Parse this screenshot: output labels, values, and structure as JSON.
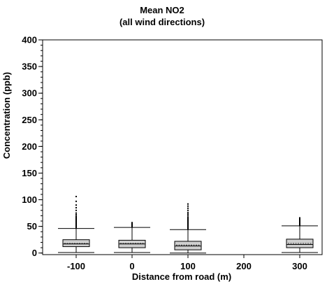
{
  "chart_data": {
    "type": "box",
    "title": "Mean NO2",
    "subtitle": "(all wind directions)",
    "xlabel": "Distance from road (m)",
    "ylabel": "Concentration (ppb)",
    "xlim": [
      -160,
      340
    ],
    "ylim": [
      -3,
      400
    ],
    "x_ticks": [
      -100,
      0,
      100,
      200,
      300
    ],
    "y_ticks": [
      0,
      50,
      100,
      150,
      200,
      250,
      300,
      350,
      400
    ],
    "y_minor_step": 10,
    "grid": false,
    "box_fill": "#cfcfcf",
    "outlier_color": "#000000",
    "boxes": [
      {
        "x": -100,
        "whisker_low": 1,
        "q1": 12,
        "median": 17,
        "mean": 18,
        "q3": 25,
        "whisker_high": 46,
        "outliers": [
          47,
          49,
          51,
          53,
          55,
          57,
          59,
          61,
          63,
          65,
          67,
          69,
          72,
          75,
          80,
          85,
          90,
          97,
          106
        ]
      },
      {
        "x": 0,
        "whisker_low": 1,
        "q1": 10,
        "median": 17,
        "mean": 18,
        "q3": 24,
        "whisker_high": 48,
        "outliers": [
          49,
          51,
          53,
          55,
          57
        ]
      },
      {
        "x": 100,
        "whisker_low": 0,
        "q1": 6,
        "median": 13,
        "mean": 15,
        "q3": 22,
        "whisker_high": 44,
        "outliers": [
          45,
          47,
          49,
          51,
          53,
          55,
          57,
          59,
          61,
          63,
          65,
          67,
          70,
          73,
          76,
          80,
          84,
          88,
          92
        ]
      },
      {
        "x": 300,
        "whisker_low": 1,
        "q1": 10,
        "median": 16,
        "mean": 18,
        "q3": 26,
        "whisker_high": 51,
        "outliers": [
          52,
          54,
          56,
          58,
          60,
          62,
          64,
          66
        ]
      }
    ]
  }
}
